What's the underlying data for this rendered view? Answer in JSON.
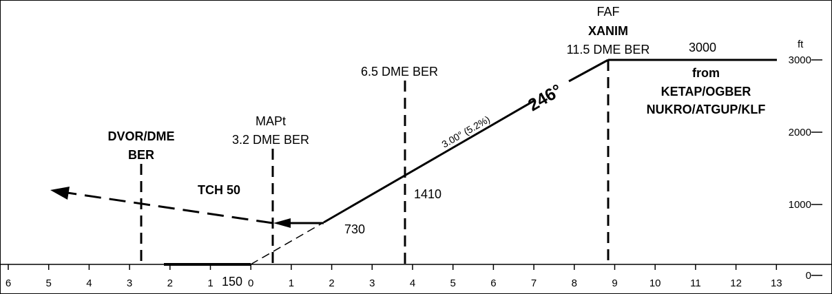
{
  "units": "ft",
  "x_ticks": [
    "6",
    "5",
    "4",
    "3",
    "2",
    "1",
    "0",
    "1",
    "2",
    "3",
    "4",
    "5",
    "6",
    "7",
    "8",
    "9",
    "10",
    "11",
    "12",
    "13"
  ],
  "y_ticks": [
    "0",
    "1000",
    "2000",
    "3000"
  ],
  "fixes": {
    "faf": {
      "line1": "FAF",
      "line2": "XANIM",
      "line3": "11.5 DME BER"
    },
    "dme65": {
      "label": "6.5 DME BER"
    },
    "mapt": {
      "line1": "MAPt",
      "line2": "3.2 DME BER"
    },
    "dvor": {
      "line1": "DVOR/DME",
      "line2": "BER"
    }
  },
  "altitudes": {
    "initial": "3000",
    "alt_1410": "1410",
    "alt_730": "730",
    "alt_150": "150"
  },
  "from": {
    "line1": "from",
    "line2": "KETAP/OGBER",
    "line3": "NUKRO/ATGUP/KLF"
  },
  "glide_label": "3.00° (5.2%)",
  "course": "246°",
  "tch": "TCH 50"
}
